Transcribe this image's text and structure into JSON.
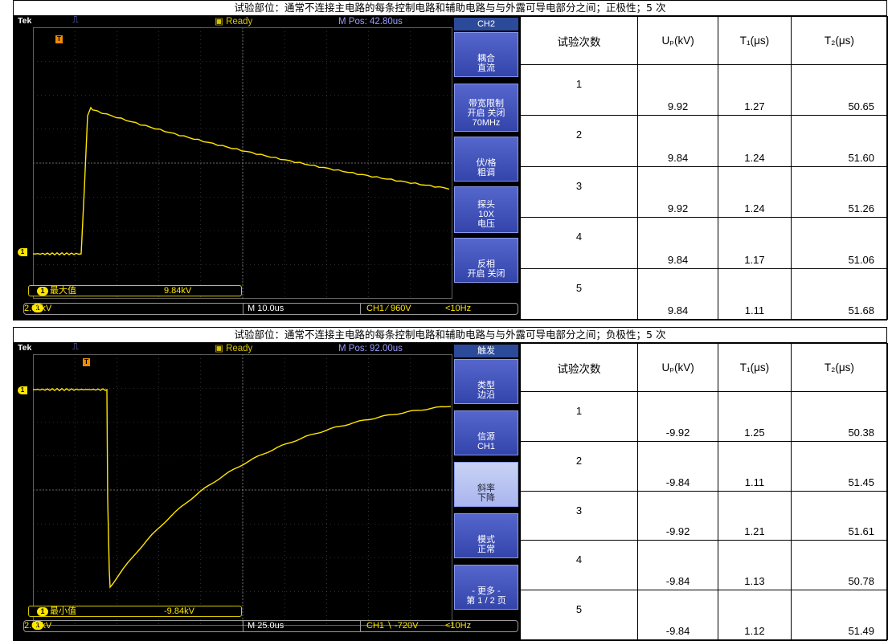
{
  "sections": [
    {
      "header": "试验部位：通常不连接主电路的每条控制电路和辅助电路与与外露可导电部分之间；正极性；5 次",
      "scope": {
        "brand": "Tek",
        "status": "Ready",
        "mpos": "M Pos: 42.80us",
        "menu_title": "CH2",
        "menu": [
          {
            "lines": [
              "耦合",
              "直流"
            ]
          },
          {
            "lines": [
              "带宽限制",
              "开启 关闭",
              "70MHz"
            ]
          },
          {
            "lines": [
              "伏/格",
              "粗调"
            ]
          },
          {
            "lines": [
              "探头",
              "10X",
              "电压"
            ]
          },
          {
            "lines": [
              "反相",
              "开启 关闭"
            ]
          }
        ],
        "measure_label": "最大值",
        "measure_value": "9.84kV",
        "ch_scale": "2.00kV",
        "timebase": "M 10.0us",
        "trigger": "CH1 ⁄ 960V",
        "freq": "<10Hz"
      },
      "table": {
        "headers": [
          "试验次数",
          "Uₚ(kV)",
          "T₁(μs)",
          "T₂(μs)"
        ],
        "rows": [
          [
            "1",
            "9.92",
            "1.27",
            "50.65"
          ],
          [
            "2",
            "9.84",
            "1.24",
            "51.60"
          ],
          [
            "3",
            "9.92",
            "1.24",
            "51.26"
          ],
          [
            "4",
            "9.84",
            "1.17",
            "51.06"
          ],
          [
            "5",
            "9.84",
            "1.11",
            "51.68"
          ]
        ]
      }
    },
    {
      "header": "试验部位：通常不连接主电路的每条控制电路和辅助电路与与外露可导电部分之间；负极性；5 次",
      "scope": {
        "brand": "Tek",
        "status": "Ready",
        "mpos": "M Pos: 92.00us",
        "menu_title": "触发",
        "menu": [
          {
            "lines": [
              "类型",
              "边沿"
            ]
          },
          {
            "lines": [
              "信源",
              "CH1"
            ]
          },
          {
            "lines": [
              "斜率",
              "下降"
            ]
          },
          {
            "lines": [
              "模式",
              "正常"
            ]
          },
          {
            "lines": [
              "- 更多 -",
              "第 1 / 2 页"
            ]
          }
        ],
        "measure_label": "最小值",
        "measure_value": "-9.84kV",
        "ch_scale": "2.00kV",
        "timebase": "M 25.0us",
        "trigger": "CH1 ∖ -720V",
        "freq": "<10Hz"
      },
      "table": {
        "headers": [
          "试验次数",
          "Uₚ(kV)",
          "T₁(μs)",
          "T₂(μs)"
        ],
        "rows": [
          [
            "1",
            "-9.92",
            "1.25",
            "50.38"
          ],
          [
            "2",
            "-9.84",
            "1.11",
            "51.45"
          ],
          [
            "3",
            "-9.92",
            "1.21",
            "51.61"
          ],
          [
            "4",
            "-9.84",
            "1.13",
            "50.78"
          ],
          [
            "5",
            "-9.84",
            "1.12",
            "51.49"
          ]
        ]
      }
    }
  ],
  "colors": {
    "trace": "#ffe700",
    "menu": "#3b4db5",
    "grid": "#555555"
  }
}
